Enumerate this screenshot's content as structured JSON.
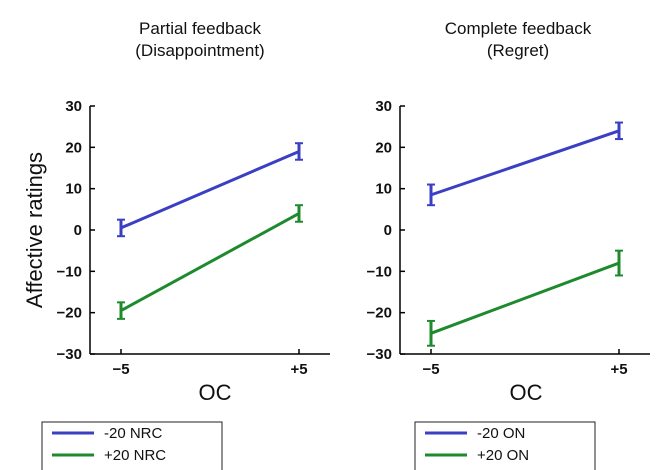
{
  "chart_data": [
    {
      "type": "line",
      "title": [
        "Partial feedback",
        "(Disappointment)"
      ],
      "xlabel": "OC",
      "ylabel": "Affective ratings",
      "categories": [
        "−5",
        "+5"
      ],
      "ylim": [
        -30,
        30
      ],
      "yticks": [
        "30",
        "20",
        "10",
        "0",
        "−10",
        "−20",
        "−30"
      ],
      "series": [
        {
          "name": "-20 NRC",
          "color": "#3b3fc4",
          "values": [
            0.5,
            19
          ],
          "errors": [
            2,
            2
          ]
        },
        {
          "name": "+20 NRC",
          "color": "#1e8a2e",
          "values": [
            -19.5,
            4
          ],
          "errors": [
            2,
            2
          ]
        }
      ],
      "legend": "bottom-left"
    },
    {
      "type": "line",
      "title": [
        "Complete feedback",
        "(Regret)"
      ],
      "xlabel": "OC",
      "ylabel": "",
      "categories": [
        "−5",
        "+5"
      ],
      "ylim": [
        -30,
        30
      ],
      "yticks": [
        "30",
        "20",
        "10",
        "0",
        "−10",
        "−20",
        "−30"
      ],
      "series": [
        {
          "name": "-20 ON",
          "color": "#3b3fc4",
          "values": [
            8.5,
            24
          ],
          "errors": [
            2.5,
            2
          ]
        },
        {
          "name": "+20 ON",
          "color": "#1e8a2e",
          "values": [
            -25,
            -8
          ],
          "errors": [
            3,
            3
          ]
        }
      ],
      "legend": "bottom-left"
    }
  ]
}
